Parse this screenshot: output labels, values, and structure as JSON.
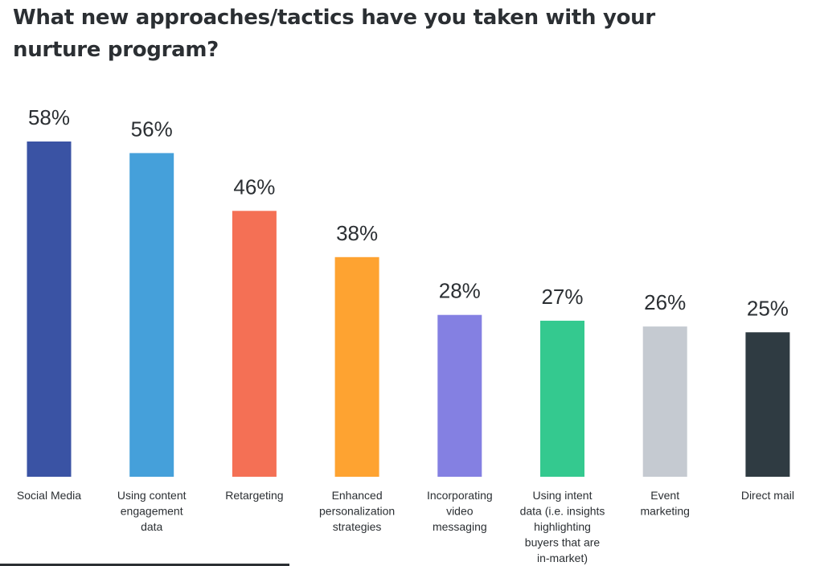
{
  "chart_data": {
    "type": "bar",
    "title": "What new approaches/tactics have you taken with your nurture program?",
    "categories": [
      "Social Media",
      "Using content engagement data",
      "Retargeting",
      "Enhanced personalization strategies",
      "Incorporating video messaging",
      "Using intent data (i.e. insights highlighting buyers that are in-market)",
      "Event marketing",
      "Direct mail"
    ],
    "category_lines": [
      [
        "Social Media"
      ],
      [
        "Using content",
        "engagement",
        "data"
      ],
      [
        "Retargeting"
      ],
      [
        "Enhanced",
        "personalization",
        "strategies"
      ],
      [
        "Incorporating",
        "video",
        "messaging"
      ],
      [
        "Using intent",
        "data (i.e. insights",
        "highlighting",
        "buyers that are",
        "in-market)"
      ],
      [
        "Event",
        "marketing"
      ],
      [
        "Direct mail"
      ]
    ],
    "values": [
      58,
      56,
      46,
      38,
      28,
      27,
      26,
      25
    ],
    "value_labels": [
      "58%",
      "56%",
      "46%",
      "38%",
      "28%",
      "27%",
      "26%",
      "25%"
    ],
    "colors": [
      "#3a53a4",
      "#45a0da",
      "#f47055",
      "#fea331",
      "#8480e2",
      "#34c98f",
      "#c5cad1",
      "#2f3b42"
    ],
    "unit": "%",
    "ylim": [
      0,
      58
    ],
    "xlabel": "",
    "ylabel": "",
    "grid": false,
    "legend": "none"
  }
}
